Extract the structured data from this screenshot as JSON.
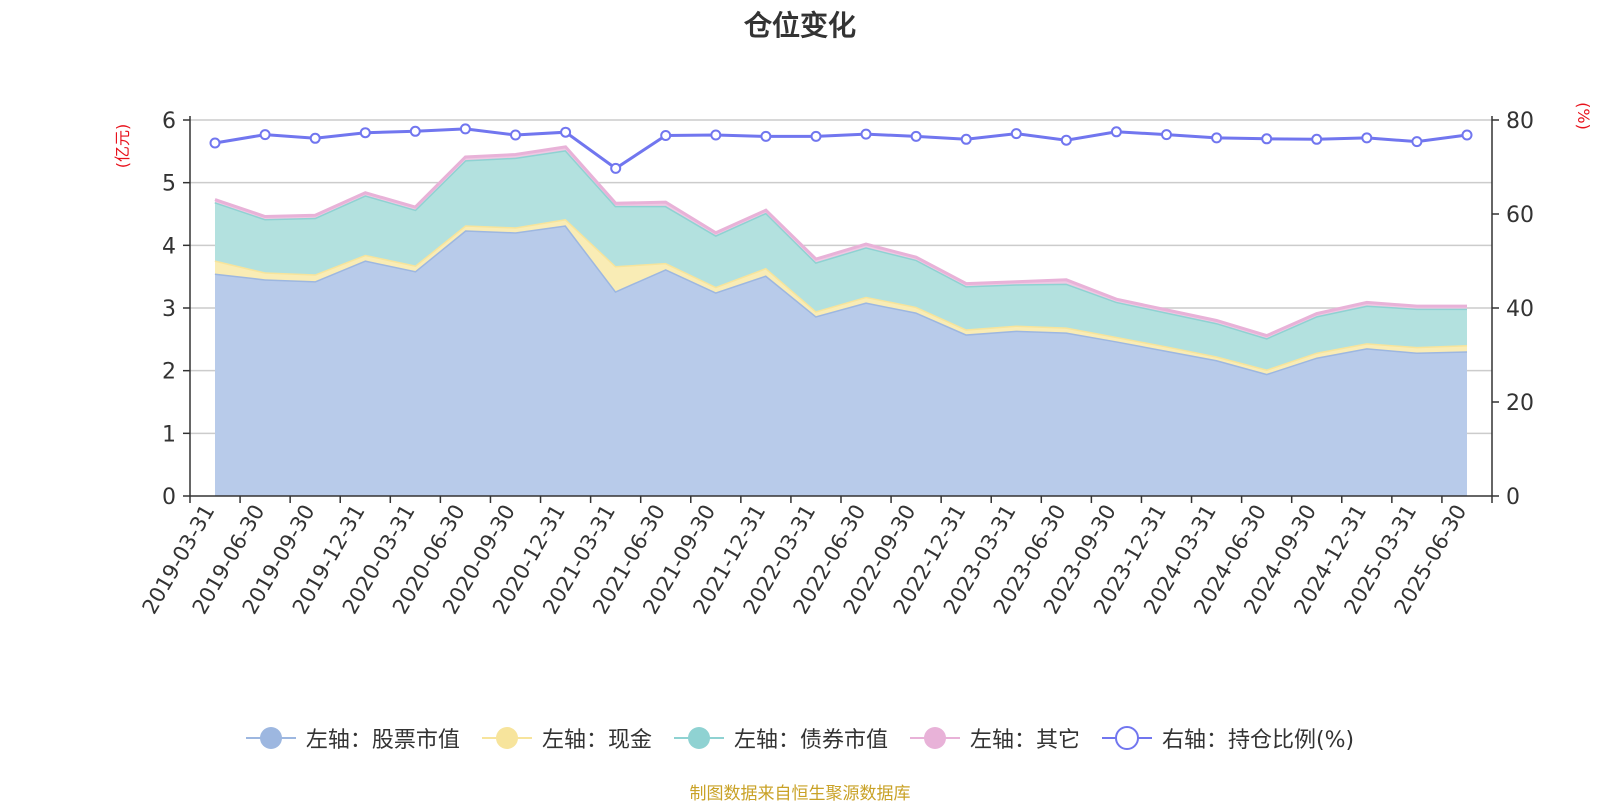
{
  "chart_data": {
    "type": "area",
    "title": "仓位变化",
    "left_axis_label": "(亿元)",
    "right_axis_label": "(%)",
    "ylim_left": [
      0,
      6
    ],
    "ylim_right": [
      0,
      80
    ],
    "left_ticks": [
      "0",
      "1",
      "2",
      "3",
      "4",
      "5",
      "6"
    ],
    "right_ticks": [
      "0",
      "20",
      "40",
      "60",
      "80"
    ],
    "grid": true,
    "stacked": true,
    "legend_position": "bottom",
    "categories": [
      "2019-03-31",
      "2019-06-30",
      "2019-09-30",
      "2019-12-31",
      "2020-03-31",
      "2020-06-30",
      "2020-09-30",
      "2020-12-31",
      "2021-03-31",
      "2021-06-30",
      "2021-09-30",
      "2021-12-31",
      "2022-03-31",
      "2022-06-30",
      "2022-09-30",
      "2022-12-31",
      "2023-03-31",
      "2023-06-30",
      "2023-09-30",
      "2023-12-31",
      "2024-03-31",
      "2024-06-30",
      "2024-09-30",
      "2024-12-31",
      "2025-03-31",
      "2025-06-30"
    ],
    "series": [
      {
        "name": "左轴：股票市值",
        "axis": "left",
        "color": "#9db7e0",
        "fill": "#b8cbea",
        "values": [
          3.55,
          3.46,
          3.43,
          3.76,
          3.59,
          4.24,
          4.21,
          4.32,
          3.27,
          3.62,
          3.25,
          3.52,
          2.87,
          3.09,
          2.93,
          2.58,
          2.64,
          2.61,
          2.47,
          2.32,
          2.17,
          1.95,
          2.21,
          2.36,
          2.29,
          2.31
        ]
      },
      {
        "name": "左轴：现金",
        "axis": "left",
        "color": "#f7e49c",
        "fill": "#f9ecb5",
        "values": [
          0.21,
          0.11,
          0.11,
          0.09,
          0.09,
          0.08,
          0.08,
          0.1,
          0.4,
          0.1,
          0.09,
          0.12,
          0.08,
          0.09,
          0.09,
          0.08,
          0.08,
          0.08,
          0.07,
          0.07,
          0.06,
          0.07,
          0.08,
          0.08,
          0.09,
          0.1
        ]
      },
      {
        "name": "左轴：债券市值",
        "axis": "left",
        "color": "#8fd2d2",
        "fill": "#b3e1df",
        "values": [
          0.93,
          0.85,
          0.9,
          0.95,
          0.89,
          1.04,
          1.11,
          1.1,
          0.96,
          0.91,
          0.82,
          0.88,
          0.78,
          0.79,
          0.75,
          0.69,
          0.66,
          0.7,
          0.56,
          0.54,
          0.53,
          0.5,
          0.58,
          0.6,
          0.61,
          0.58
        ]
      },
      {
        "name": "左轴：其它",
        "axis": "left",
        "color": "#e8b2d8",
        "fill": "#efc8e3",
        "values": [
          0.04,
          0.04,
          0.04,
          0.04,
          0.04,
          0.05,
          0.05,
          0.05,
          0.04,
          0.06,
          0.04,
          0.04,
          0.05,
          0.05,
          0.04,
          0.04,
          0.04,
          0.06,
          0.04,
          0.04,
          0.04,
          0.04,
          0.04,
          0.05,
          0.04,
          0.04
        ]
      },
      {
        "name": "右轴：持仓比例(%)",
        "axis": "right",
        "color": "#7176ef",
        "values": [
          75.1,
          76.9,
          76.1,
          77.3,
          77.6,
          78.1,
          76.8,
          77.4,
          69.7,
          76.7,
          76.8,
          76.5,
          76.5,
          77.0,
          76.5,
          75.9,
          77.1,
          75.7,
          77.5,
          76.9,
          76.2,
          76.0,
          75.9,
          76.2,
          75.4,
          76.8
        ]
      }
    ]
  },
  "source_note": "制图数据来自恒生聚源数据库"
}
